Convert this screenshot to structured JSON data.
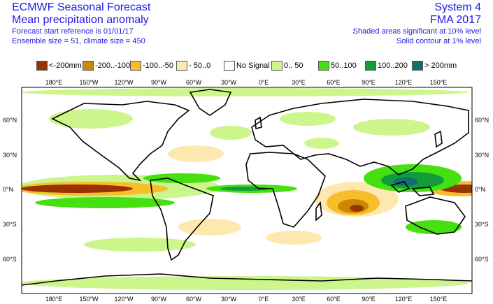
{
  "header": {
    "title": "ECMWF Seasonal Forecast",
    "subtitle": "Mean precipitation anomaly",
    "start_ref": "Forecast start reference is 01/01/17",
    "ensemble": "Ensemble size = 51, climate size = 450",
    "system": "System 4",
    "period": "FMA 2017",
    "shaded_note": "Shaded areas significant at 10% level",
    "contour_note": "Solid contour at 1% level"
  },
  "legend": [
    {
      "label": "<-200mm",
      "color": "#993300"
    },
    {
      "label": "-200..-100",
      "color": "#cc8800"
    },
    {
      "label": "-100..-50",
      "color": "#f5be2a"
    },
    {
      "label": "- 50..0",
      "color": "#fde8b0"
    },
    {
      "label": "No Signal",
      "color": "#ffffff"
    },
    {
      "label": "0.. 50",
      "color": "#ccf58c"
    },
    {
      "label": "50..100",
      "color": "#44e012"
    },
    {
      "label": "100..200",
      "color": "#129c3c"
    },
    {
      "label": "> 200mm",
      "color": "#107070"
    }
  ],
  "axes": {
    "lon_labels": [
      "180°E",
      "150°W",
      "120°W",
      "90°W",
      "60°W",
      "30°W",
      "0°E",
      "30°E",
      "60°E",
      "90°E",
      "120°E",
      "150°E"
    ],
    "lat_labels": [
      "60°N",
      "30°N",
      "0°N",
      "30°S",
      "60°S"
    ]
  }
}
